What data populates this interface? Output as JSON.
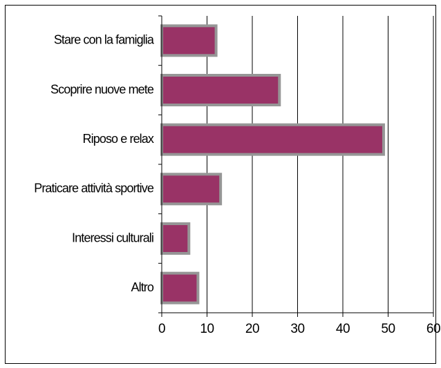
{
  "chart_data": {
    "type": "bar",
    "orientation": "horizontal",
    "categories": [
      "Stare con la famiglia",
      "Scoprire nuove mete",
      "Riposo e relax",
      "Praticare attività sportive",
      "Interessi culturali",
      "Altro"
    ],
    "values": [
      12,
      26,
      49,
      13,
      6,
      8
    ],
    "xlim": [
      0,
      60
    ],
    "xticks": [
      "0",
      "10",
      "20",
      "30",
      "40",
      "50",
      "60"
    ],
    "grid": "vertical",
    "legend": "none",
    "colors": {
      "bar_fill": "#993366",
      "bar_border": "#969696",
      "grid": "#000000"
    }
  }
}
